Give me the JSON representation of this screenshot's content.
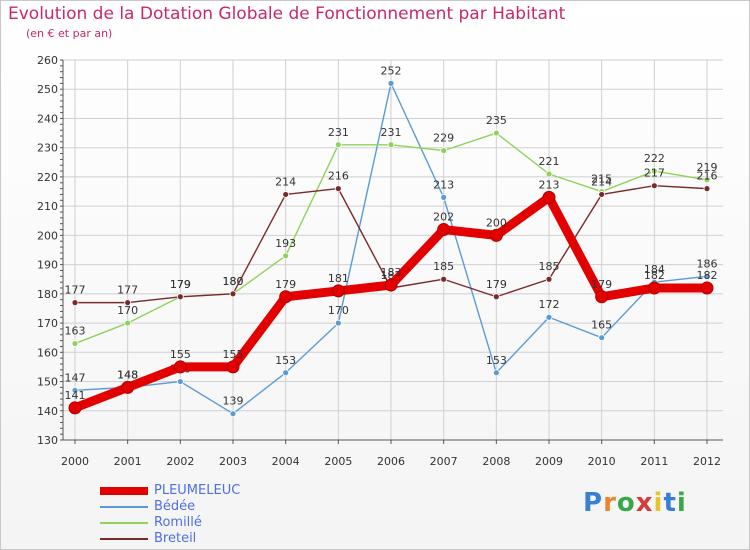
{
  "title": "Evolution de la Dotation Globale de Fonctionnement par Habitant",
  "subtitle": "(en € et par an)",
  "logo_text": "Proxiti",
  "colors": {
    "title": "#c8286a",
    "grid": "#d0d0d0",
    "axis": "#555555",
    "tick_text": "#333333",
    "legend_text": "#4f6fe0"
  },
  "chart_data": {
    "type": "line",
    "title": "Evolution de la Dotation Globale de Fonctionnement par Habitant",
    "subtitle": "(en € et par an)",
    "xlabel": "",
    "ylabel": "",
    "categories": [
      "2000",
      "2001",
      "2002",
      "2003",
      "2004",
      "2005",
      "2006",
      "2007",
      "2008",
      "2009",
      "2010",
      "2011",
      "2012"
    ],
    "ylim": [
      130,
      260
    ],
    "yticks": [
      130,
      140,
      150,
      160,
      170,
      180,
      190,
      200,
      210,
      220,
      230,
      240,
      250,
      260
    ],
    "grid": true,
    "legend_position": "bottom-left",
    "series": [
      {
        "name": "PLEUMELEUC",
        "color": "#e30000",
        "values": [
          141,
          148,
          155,
          155,
          179,
          181,
          183,
          202,
          200,
          213,
          179,
          182,
          182
        ]
      },
      {
        "name": "Bédée",
        "color": "#5b9bd5",
        "values": [
          147,
          148,
          150,
          139,
          153,
          170,
          252,
          213,
          153,
          172,
          165,
          184,
          186
        ]
      },
      {
        "name": "Romillé",
        "color": "#8fd35a",
        "values": [
          163,
          170,
          179,
          180,
          193,
          231,
          231,
          229,
          235,
          221,
          215,
          222,
          219
        ]
      },
      {
        "name": "Breteil",
        "color": "#7a2a2a",
        "values": [
          177,
          177,
          179,
          180,
          214,
          216,
          182,
          185,
          179,
          185,
          214,
          217,
          216
        ]
      }
    ]
  }
}
